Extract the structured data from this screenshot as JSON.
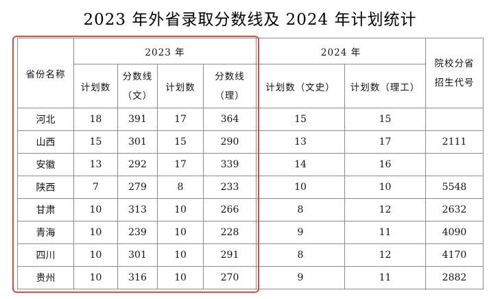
{
  "title": "2023 年外省录取分数线及 2024 年计划统计",
  "headers": {
    "province": "省份名称",
    "year2023": "2023 年",
    "year2024": "2024 年",
    "school_code_line1": "院校分省",
    "school_code_line2": "招生代号",
    "plan_2023_a": "计划数",
    "score_wen_line1": "分数线",
    "score_wen_line2": "（文）",
    "plan_2023_b": "计划数",
    "score_li_line1": "分数线",
    "score_li_line2": "（理）",
    "plan_2024_wen": "计划数（文史）",
    "plan_2024_li": "计划数（理工）"
  },
  "rows": [
    {
      "province": "河北",
      "plan23a": "18",
      "score_wen": "391",
      "plan23b": "17",
      "score_li": "364",
      "plan24_wen": "15",
      "plan24_li": "15",
      "code": ""
    },
    {
      "province": "山西",
      "plan23a": "15",
      "score_wen": "301",
      "plan23b": "15",
      "score_li": "290",
      "plan24_wen": "13",
      "plan24_li": "17",
      "code": "2111"
    },
    {
      "province": "安徽",
      "plan23a": "13",
      "score_wen": "292",
      "plan23b": "17",
      "score_li": "339",
      "plan24_wen": "14",
      "plan24_li": "16",
      "code": ""
    },
    {
      "province": "陕西",
      "plan23a": "7",
      "score_wen": "279",
      "plan23b": "8",
      "score_li": "233",
      "plan24_wen": "10",
      "plan24_li": "10",
      "code": "5548"
    },
    {
      "province": "甘肃",
      "plan23a": "10",
      "score_wen": "313",
      "plan23b": "10",
      "score_li": "266",
      "plan24_wen": "8",
      "plan24_li": "12",
      "code": "2632"
    },
    {
      "province": "青海",
      "plan23a": "10",
      "score_wen": "239",
      "plan23b": "10",
      "score_li": "228",
      "plan24_wen": "9",
      "plan24_li": "11",
      "code": "4090"
    },
    {
      "province": "四川",
      "plan23a": "10",
      "score_wen": "301",
      "plan23b": "10",
      "score_li": "291",
      "plan24_wen": "8",
      "plan24_li": "12",
      "code": "4170"
    },
    {
      "province": "贵州",
      "plan23a": "10",
      "score_wen": "316",
      "plan23b": "10",
      "score_li": "270",
      "plan24_wen": "9",
      "plan24_li": "11",
      "code": "2882"
    }
  ],
  "highlight_color": "#e24a3c"
}
